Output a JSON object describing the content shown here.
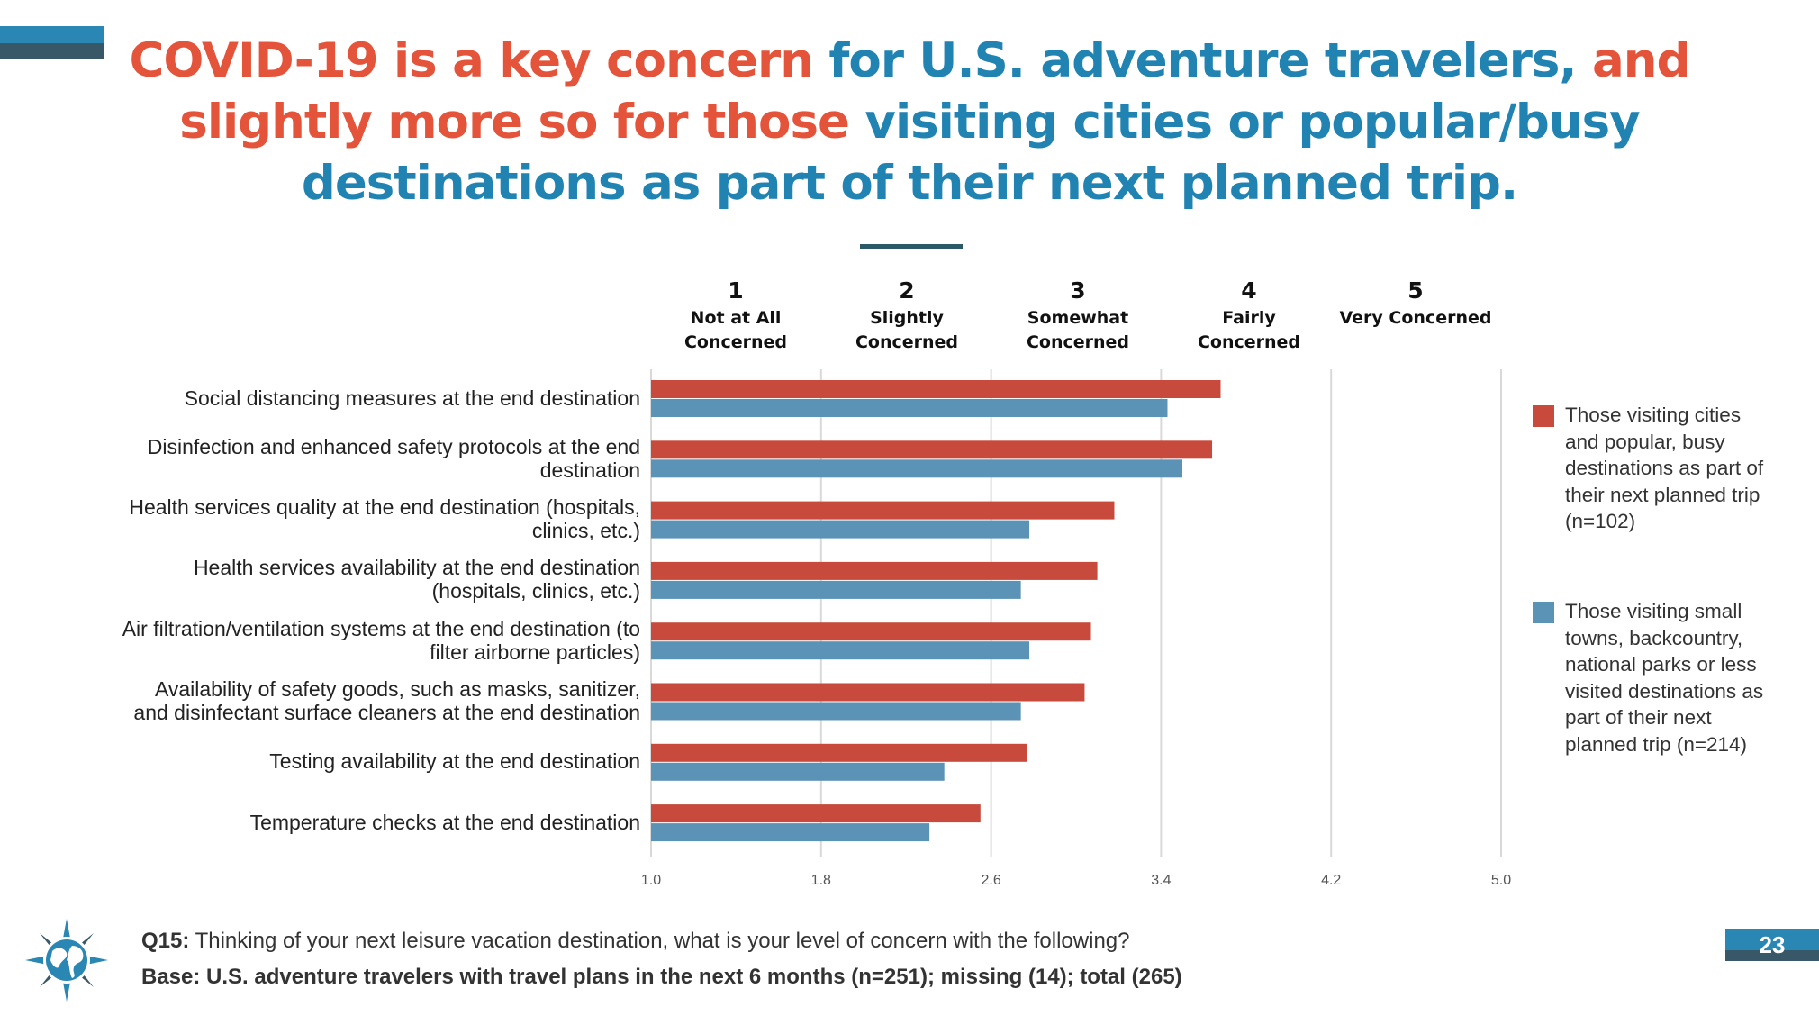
{
  "headline": {
    "line1": [
      {
        "text": "COVID-19 is a key concern ",
        "color": "red"
      },
      {
        "text": "for U.S. adventure travelers, ",
        "color": "blue"
      },
      {
        "text": "and",
        "color": "red"
      }
    ],
    "line2": [
      {
        "text": "slightly more so for those ",
        "color": "red"
      },
      {
        "text": "visiting cities or popular/busy",
        "color": "blue"
      }
    ],
    "line3": [
      {
        "text": "destinations as part of their next planned trip.",
        "color": "blue"
      }
    ]
  },
  "colors": {
    "red": "#e4543b",
    "blue": "#2083b2",
    "series_red": "#c84a3c",
    "series_blue": "#5b93b6",
    "accent_dark": "#385867",
    "accent_light": "#2a86b3"
  },
  "scale_headers": [
    {
      "num": "1",
      "text": [
        "Not at All",
        "Concerned"
      ]
    },
    {
      "num": "2",
      "text": [
        "Slightly",
        "Concerned"
      ]
    },
    {
      "num": "3",
      "text": [
        "Somewhat",
        "Concerned"
      ]
    },
    {
      "num": "4",
      "text": [
        "Fairly",
        "Concerned"
      ]
    },
    {
      "num": "5",
      "text": [
        "Very Concerned"
      ]
    }
  ],
  "chart_data": {
    "type": "bar",
    "orientation": "horizontal",
    "categories": [
      "Social distancing measures at the end destination",
      "Disinfection and enhanced safety protocols at the end destination",
      "Health services quality at the end destination (hospitals, clinics, etc.)",
      "Health services availability at the end destination (hospitals, clinics, etc.)",
      "Air filtration/ventilation systems at the end destination (to filter airborne particles)",
      "Availability of safety goods, such as masks, sanitizer, and disinfectant surface cleaners at the end destination",
      "Testing availability at the end destination",
      "Temperature checks at the end destination"
    ],
    "category_lines": [
      [
        "Social distancing measures at the end destination"
      ],
      [
        "Disinfection and enhanced safety protocols at the end",
        "destination"
      ],
      [
        "Health services quality at the end destination (hospitals,",
        "clinics, etc.)"
      ],
      [
        "Health services availability at the end destination",
        "(hospitals, clinics, etc.)"
      ],
      [
        "Air filtration/ventilation systems at the end destination (to",
        "filter airborne particles)"
      ],
      [
        "Availability of safety goods, such as masks, sanitizer,",
        "and disinfectant surface cleaners at the end destination"
      ],
      [
        "Testing availability at the end destination"
      ],
      [
        "Temperature checks at the end destination"
      ]
    ],
    "series": [
      {
        "name": "Those visiting cities and popular, busy destinations as part of their next planned trip (n=102)",
        "color": "#c84a3c",
        "values": [
          3.68,
          3.64,
          3.18,
          3.1,
          3.07,
          3.04,
          2.77,
          2.55
        ]
      },
      {
        "name": "Those visiting small towns, backcountry, national parks or less visited destinations as part of their next planned trip (n=214)",
        "color": "#5b93b6",
        "values": [
          3.43,
          3.5,
          2.78,
          2.74,
          2.78,
          2.74,
          2.38,
          2.31
        ]
      }
    ],
    "xlim": [
      1.0,
      5.0
    ],
    "xticks": [
      "1.0",
      "1.8",
      "2.6",
      "3.4",
      "4.2",
      "5.0"
    ],
    "grid": true,
    "legend_position": "right"
  },
  "legend": [
    {
      "color": "#c84a3c",
      "lines": [
        "Those visiting cities",
        "and popular, busy",
        "destinations as part of",
        "their next planned trip",
        "(n=102)"
      ]
    },
    {
      "color": "#5b93b6",
      "lines": [
        "Those visiting small",
        "towns, backcountry,",
        "national parks or less",
        "visited destinations as",
        "part of their next",
        "planned trip (n=214)"
      ]
    }
  ],
  "footer": {
    "q_label": "Q15:",
    "q_text": " Thinking of your next leisure vacation destination, what is your level of concern with the following?",
    "base_label": "Base: ",
    "base_text": "U.S. adventure travelers with travel plans in the next 6 months (n=251); missing (14); total (265)",
    "icon": "globe-compass-icon"
  },
  "page_number": "23"
}
